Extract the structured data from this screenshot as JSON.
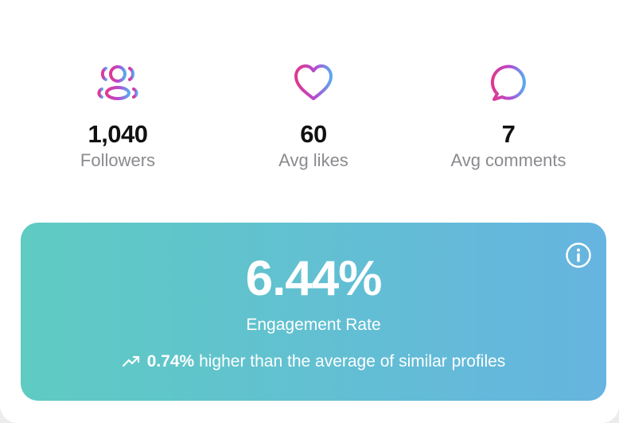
{
  "stats": [
    {
      "icon": "followers-icon",
      "value": "1,040",
      "label": "Followers"
    },
    {
      "icon": "heart-icon",
      "value": "60",
      "label": "Avg likes"
    },
    {
      "icon": "comment-icon",
      "value": "7",
      "label": "Avg comments"
    }
  ],
  "engagement": {
    "rate": "6.44%",
    "label": "Engagement Rate",
    "comparison_value": "0.74%",
    "comparison_text": "higher than the average of similar profiles",
    "trend_icon": "trending-up-icon",
    "info_icon": "info-icon"
  },
  "colors": {
    "icon_gradient_start": "#e0388f",
    "icon_gradient_mid": "#b54ad0",
    "icon_gradient_end": "#5aa9ef",
    "banner_gradient_start": "#5fcbc2",
    "banner_gradient_end": "#66b4e0"
  }
}
